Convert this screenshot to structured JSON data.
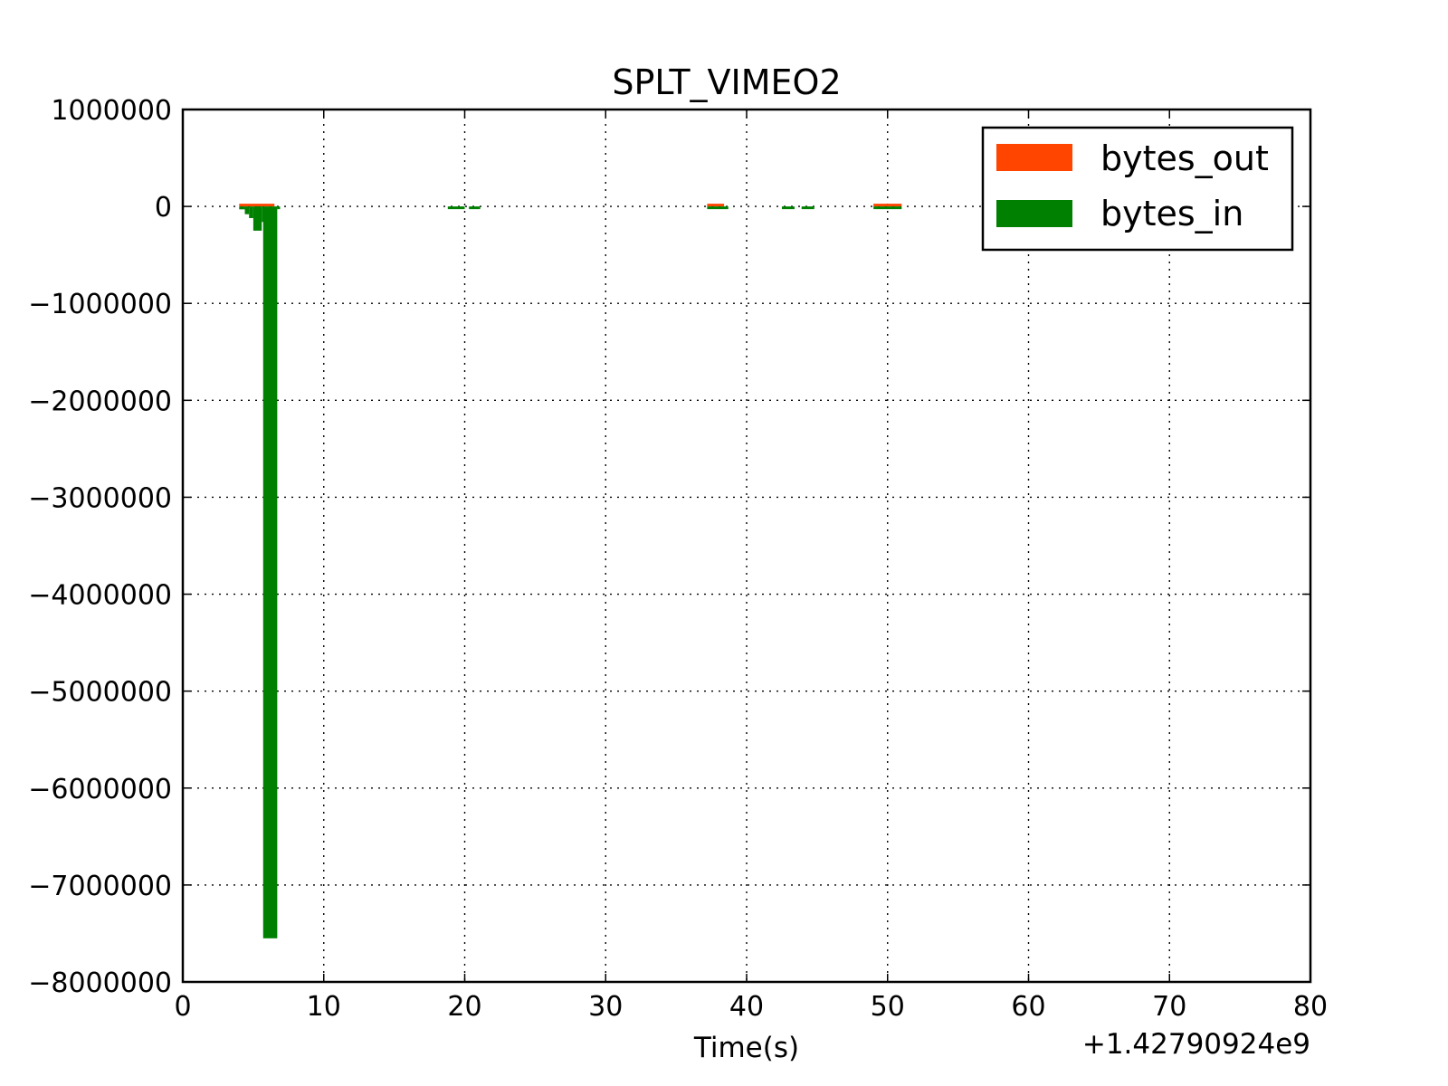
{
  "chart_data": {
    "type": "bar",
    "title": "SPLT_VIMEO2",
    "xlabel": "Time(s)",
    "ylabel": "",
    "x_offset_label": "+1.42790924e9",
    "xlim": [
      0,
      80
    ],
    "ylim": [
      -8000000,
      1000000
    ],
    "x_ticks": [
      0,
      10,
      20,
      30,
      40,
      50,
      60,
      70,
      80
    ],
    "x_tick_labels": [
      "0",
      "10",
      "20",
      "30",
      "40",
      "50",
      "60",
      "70",
      "80"
    ],
    "y_ticks": [
      1000000,
      0,
      -1000000,
      -2000000,
      -3000000,
      -4000000,
      -5000000,
      -6000000,
      -7000000,
      -8000000
    ],
    "y_tick_labels": [
      "1000000",
      "0",
      "−1000000",
      "−2000000",
      "−3000000",
      "−4000000",
      "−5000000",
      "−6000000",
      "−7000000",
      "−8000000"
    ],
    "grid": true,
    "legend_position": "top-right",
    "series": [
      {
        "name": "bytes_out",
        "color": "#ff4500",
        "bars": [
          {
            "x": 4.0,
            "width": 2.5,
            "value": 15000
          },
          {
            "x": 37.2,
            "width": 1.2,
            "value": 20000
          },
          {
            "x": 49.0,
            "width": 2.0,
            "value": 15000
          }
        ]
      },
      {
        "name": "bytes_in",
        "color": "#008000",
        "bars": [
          {
            "x": 4.0,
            "width": 0.4,
            "value": -30000
          },
          {
            "x": 4.4,
            "width": 0.3,
            "value": -80000
          },
          {
            "x": 4.7,
            "width": 0.3,
            "value": -120000
          },
          {
            "x": 5.0,
            "width": 0.6,
            "value": -250000
          },
          {
            "x": 5.6,
            "width": 0.1,
            "value": -160000
          },
          {
            "x": 5.2,
            "width": 0.3,
            "value": -150000
          },
          {
            "x": 5.2,
            "width": 0.3,
            "value": -140000
          },
          {
            "x": 5.2,
            "width": 0.3,
            "value": -130000
          },
          {
            "x": 5.2,
            "width": 0.3,
            "value": -120000
          },
          {
            "x": 5.2,
            "width": 0.3,
            "value": -110000
          },
          {
            "x": 5.2,
            "width": 0.3,
            "value": -100000
          },
          {
            "x": 5.2,
            "width": 0.3,
            "value": -90000
          },
          {
            "x": 5.2,
            "width": 0.3,
            "value": -80000
          },
          {
            "x": 5.2,
            "width": 0.3,
            "value": -70000
          },
          {
            "x": 5.7,
            "width": 1.0,
            "value": -7550000
          },
          {
            "x": 6.7,
            "width": 0.2,
            "value": -20000
          },
          {
            "x": 18.8,
            "width": 1.2,
            "value": -15000
          },
          {
            "x": 20.3,
            "width": 0.8,
            "value": -15000
          },
          {
            "x": 37.2,
            "width": 1.5,
            "value": -20000
          },
          {
            "x": 42.5,
            "width": 0.9,
            "value": -15000
          },
          {
            "x": 43.9,
            "width": 0.9,
            "value": -15000
          },
          {
            "x": 49.0,
            "width": 2.0,
            "value": -20000
          }
        ]
      }
    ]
  }
}
